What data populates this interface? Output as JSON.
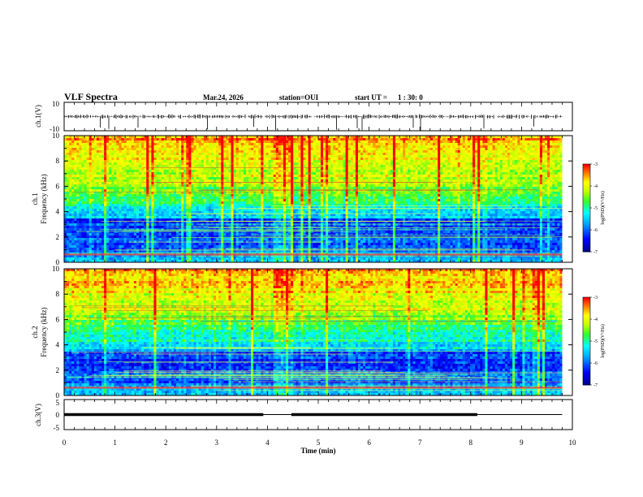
{
  "header": {
    "title": "VLF Spectra",
    "date": "Mar.24, 2026",
    "station": "station=OUI",
    "start_label": "start  UT =",
    "start_time": "1 : 30: 0"
  },
  "chart_data": [
    {
      "type": "line",
      "panel": "ch1-waveform",
      "ylabel": "ch.1(V)",
      "ylim": [
        -10,
        10
      ],
      "yticks": [
        "10",
        "-10"
      ],
      "xlim": [
        0,
        10
      ],
      "description_values": "noisy baseline near 0 V with spikes",
      "baseline": 0
    },
    {
      "type": "heatmap",
      "panel": "ch1-spectrogram",
      "ylabel_top": "ch.1",
      "ylabel": "Frequency (kHz)",
      "ylim": [
        0,
        10
      ],
      "yticks": [
        "0",
        "2",
        "4",
        "6",
        "8",
        "10"
      ],
      "xlim": [
        0,
        10
      ],
      "data_end_min": 9.8,
      "colorbar": {
        "label": "log(PSD)(V²/Hz)",
        "range": [
          -7,
          -3
        ],
        "ticks": [
          "-3",
          "-4",
          "-5",
          "-6",
          "-7"
        ]
      }
    },
    {
      "type": "heatmap",
      "panel": "ch2-spectrogram",
      "ylabel_top": "ch.2",
      "ylabel": "Frequency (kHz)",
      "ylim": [
        0,
        10
      ],
      "yticks": [
        "0",
        "2",
        "4",
        "6",
        "8",
        "10"
      ],
      "xlim": [
        0,
        10
      ],
      "data_end_min": 9.8,
      "colorbar": {
        "label": "log(PSD)(V²/Hz)",
        "range": [
          -7,
          -3
        ],
        "ticks": [
          "-3",
          "-4",
          "-5",
          "-6",
          "-7"
        ]
      }
    },
    {
      "type": "line",
      "panel": "ch3-trigger",
      "ylabel": "ch.3(V)",
      "ylim": [
        -5,
        5
      ],
      "yticks": [
        "5",
        "0",
        "-5"
      ],
      "xlim": [
        0,
        10
      ],
      "xlabel": "Time (min)",
      "xticks": [
        "0",
        "1",
        "2",
        "3",
        "4",
        "5",
        "6",
        "7",
        "8",
        "9",
        "10"
      ],
      "segments": [
        {
          "x": [
            0.0,
            3.92
          ],
          "y": 0,
          "bar": true
        },
        {
          "x": [
            3.92,
            4.47
          ],
          "y": 0,
          "bar": false
        },
        {
          "x": [
            4.47,
            8.13
          ],
          "y": 0,
          "bar": true
        },
        {
          "x": [
            8.13,
            9.8
          ],
          "y": 0,
          "bar": false
        }
      ]
    }
  ]
}
